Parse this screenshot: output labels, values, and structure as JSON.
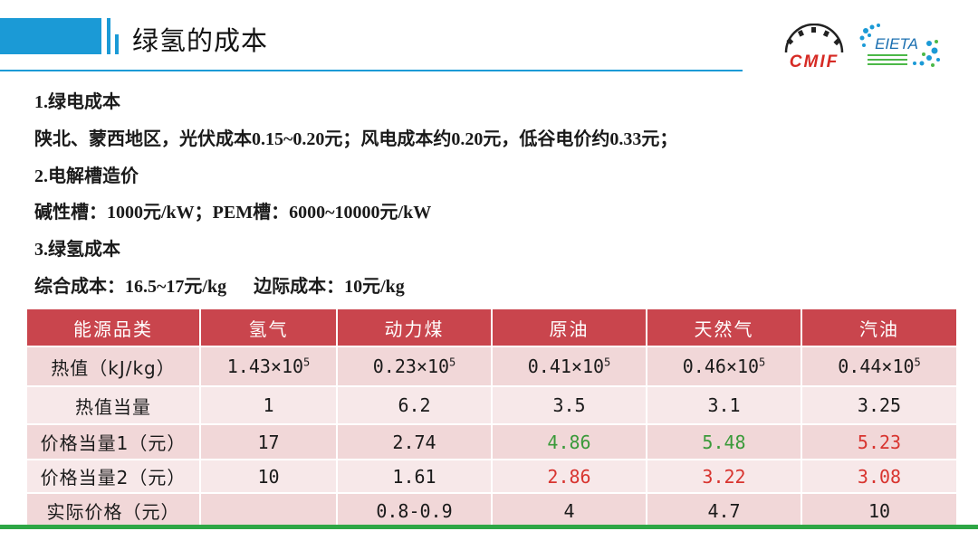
{
  "header": {
    "title": "绿氢的成本"
  },
  "logos": {
    "left_text": "CMIF",
    "right_text": "EIETA"
  },
  "sections": [
    {
      "heading": "1.绿电成本",
      "body": "陕北、蒙西地区，光伏成本0.15~0.20元；风电成本约0.20元，低谷电价约0.33元；"
    },
    {
      "heading": "2.电解槽造价",
      "body": "碱性槽：1000元/kW；PEM槽：6000~10000元/kW"
    },
    {
      "heading": "3.绿氢成本",
      "body": "综合成本：16.5~17元/kg      边际成本：10元/kg"
    }
  ],
  "table": {
    "headers": [
      "能源品类",
      "氢气",
      "动力煤",
      "原油",
      "天然气",
      "汽油"
    ],
    "rows": [
      {
        "label": "热值（kJ/kg）",
        "cells": [
          {
            "base": "1.43×10",
            "exp": "5"
          },
          {
            "base": "0.23×10",
            "exp": "5"
          },
          {
            "base": "0.41×10",
            "exp": "5"
          },
          {
            "base": "0.46×10",
            "exp": "5"
          },
          {
            "base": "0.44×10",
            "exp": "5"
          }
        ]
      },
      {
        "label": "热值当量",
        "cells": [
          "1",
          "6.2",
          "3.5",
          "3.1",
          "3.25"
        ]
      },
      {
        "label": "价格当量1（元）",
        "cells": [
          "17",
          "2.74",
          "4.86",
          "5.48",
          "5.23"
        ]
      },
      {
        "label": "价格当量2（元）",
        "cells": [
          "10",
          "1.61",
          "2.86",
          "3.22",
          "3.08"
        ]
      },
      {
        "label": "实际价格（元）",
        "cells": [
          "",
          "0.8-0.9",
          "4",
          "4.7",
          "10"
        ]
      }
    ]
  },
  "colors": {
    "accent_blue": "#1b9ad6",
    "table_header": "#c9454d",
    "highlight_green": "#3a9a3a",
    "highlight_red": "#d8342f",
    "footer_green": "#2ea645"
  }
}
